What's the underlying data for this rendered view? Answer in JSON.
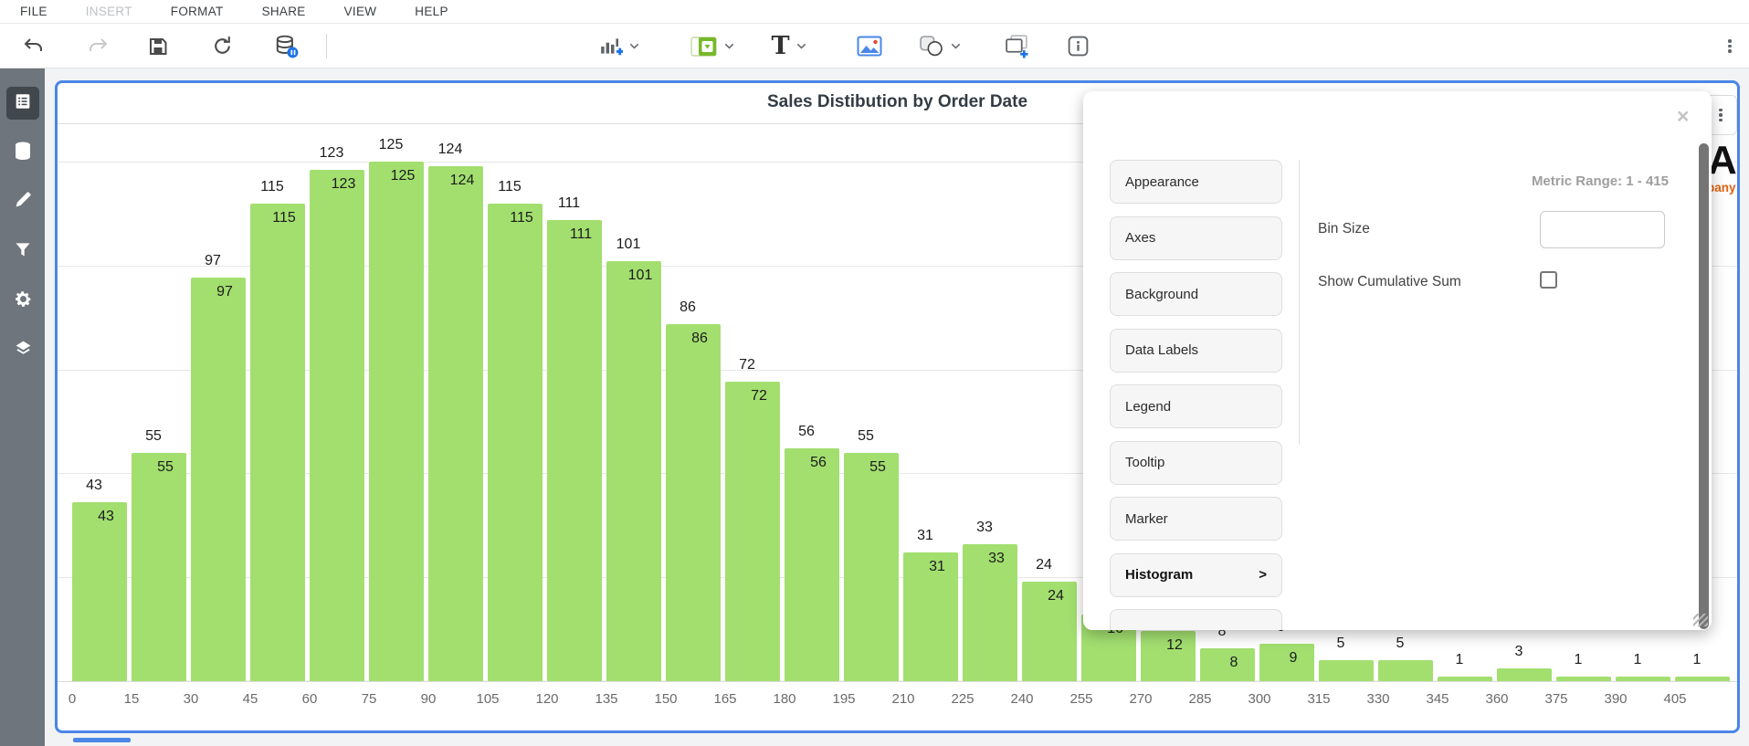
{
  "menu": {
    "items": [
      {
        "label": "FILE",
        "enabled": true
      },
      {
        "label": "INSERT",
        "enabled": false
      },
      {
        "label": "FORMAT",
        "enabled": true
      },
      {
        "label": "SHARE",
        "enabled": true
      },
      {
        "label": "VIEW",
        "enabled": true
      },
      {
        "label": "HELP",
        "enabled": true
      }
    ]
  },
  "toolbar": {
    "left_icons": [
      "undo-icon",
      "redo-icon",
      "save-icon",
      "refresh-icon",
      "database-status-icon"
    ],
    "insert_icons": [
      "add-chart-icon",
      "control-filter-icon",
      "text-icon",
      "image-icon",
      "shapes-icon",
      "add-container-icon",
      "info-icon"
    ],
    "text_icon_glyph": "T",
    "more_icon": "kebab-menu-icon",
    "accent_blue": "#1a73e8"
  },
  "sidebar": {
    "items": [
      {
        "icon": "data-grid-icon",
        "active": true
      },
      {
        "icon": "database-icon",
        "active": false
      },
      {
        "icon": "pencil-icon",
        "active": false
      },
      {
        "icon": "filter-icon",
        "active": false
      },
      {
        "icon": "gear-icon",
        "active": false
      },
      {
        "icon": "layers-icon",
        "active": false
      }
    ]
  },
  "chart": {
    "watermark": {
      "letter": "A",
      "text": "pany",
      "color": "#e2620f"
    },
    "selection_border_color": "#4a86e8"
  },
  "chart_data": {
    "type": "bar",
    "subtype": "histogram",
    "title": "Sales Distibution by Order Date",
    "categories": [
      0,
      15,
      30,
      45,
      60,
      75,
      90,
      105,
      120,
      135,
      150,
      165,
      180,
      195,
      210,
      225,
      240,
      255,
      270,
      285,
      300,
      315,
      330,
      345,
      360,
      375,
      390,
      405
    ],
    "values": [
      43,
      55,
      97,
      115,
      123,
      125,
      124,
      115,
      111,
      101,
      86,
      72,
      56,
      55,
      31,
      33,
      24,
      16,
      12,
      8,
      9,
      5,
      5,
      1,
      3,
      1,
      1,
      1
    ],
    "bin_width": 15,
    "xlabel": "",
    "ylabel": "",
    "ylim": [
      0,
      134
    ],
    "gridline_values": [
      25,
      50,
      75,
      100,
      125
    ],
    "grid": true,
    "legend": false,
    "bar_color": "#a2df6f",
    "data_label_positions": [
      "outside",
      "inside"
    ]
  },
  "panel": {
    "close_label": "×",
    "buttons": [
      {
        "label": "Appearance",
        "active": false
      },
      {
        "label": "Axes",
        "active": false
      },
      {
        "label": "Background",
        "active": false
      },
      {
        "label": "Data Labels",
        "active": false
      },
      {
        "label": "Legend",
        "active": false
      },
      {
        "label": "Tooltip",
        "active": false
      },
      {
        "label": "Marker",
        "active": false
      },
      {
        "label": "Histogram",
        "active": true,
        "arrow": ">"
      },
      {
        "label": "",
        "active": false
      }
    ],
    "metric_range": "Metric Range: 1 - 415",
    "bin_size_label": "Bin Size",
    "bin_size_value": "",
    "show_cumulative_label": "Show Cumulative Sum",
    "show_cumulative_checked": false
  }
}
